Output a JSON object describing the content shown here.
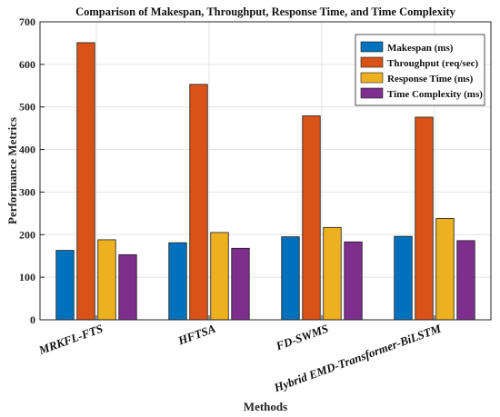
{
  "chart_data": {
    "type": "bar",
    "title": "Comparison of Makespan, Throughput, Response Time, and Time Complexity",
    "xlabel": "Methods",
    "ylabel": "Performance Metrics",
    "categories": [
      "MRKFL-FTS",
      "HFTSA",
      "FD-SWMS",
      "Hybrid EMD-Transformer-BiLSTM"
    ],
    "series": [
      {
        "name": "Makespan (ms)",
        "color": "#0072BD",
        "values": [
          163,
          181,
          195,
          196
        ]
      },
      {
        "name": "Throughput (req/sec)",
        "color": "#D95319",
        "values": [
          651,
          553,
          479,
          476
        ]
      },
      {
        "name": "Response Time (ms)",
        "color": "#EDB120",
        "values": [
          188,
          205,
          217,
          238
        ]
      },
      {
        "name": "Time Complexity (ms)",
        "color": "#7E2F8E",
        "values": [
          153,
          168,
          183,
          186
        ]
      }
    ],
    "ylim": [
      0,
      700
    ],
    "yticks": [
      0,
      100,
      200,
      300,
      400,
      500,
      600,
      700
    ],
    "grid": true,
    "legend_position": "top-right"
  }
}
